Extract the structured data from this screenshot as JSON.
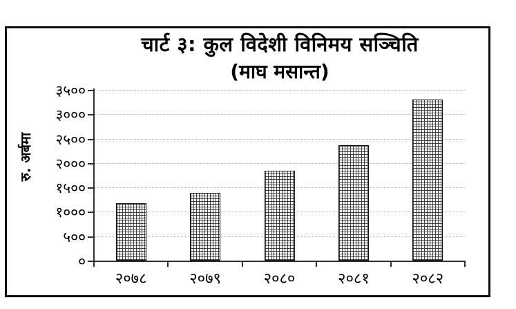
{
  "chart_data": {
    "type": "bar",
    "title": "चार्ट ३: कुल विदेशी विनिमय सञ्चिति",
    "subtitle": "(माघ मसान्त)",
    "ylabel": "रु. अर्बमा",
    "xlabel": "",
    "categories": [
      "२०७८",
      "२०७९",
      "२०८०",
      "२०८१",
      "२०८२"
    ],
    "values": [
      1170,
      1385,
      1840,
      2360,
      3300
    ],
    "ylim": [
      0,
      3500
    ],
    "y_tick_values": [
      0,
      500,
      1000,
      1500,
      2000,
      2500,
      3000,
      3500
    ],
    "y_tick_labels": [
      "०",
      "५००",
      "१०००",
      "१५००",
      "२०००",
      "२५००",
      "३०००",
      "३५००"
    ],
    "grid": true,
    "legend_position": "none",
    "bar_fill": "crosshatch",
    "colors": {
      "bar_line": "#141414",
      "bar_background": "#ffffff",
      "axis": "#2d2d2d",
      "gridline": "#b7b7b7",
      "text": "#000000",
      "frame_border": "#0d0d0d"
    }
  }
}
